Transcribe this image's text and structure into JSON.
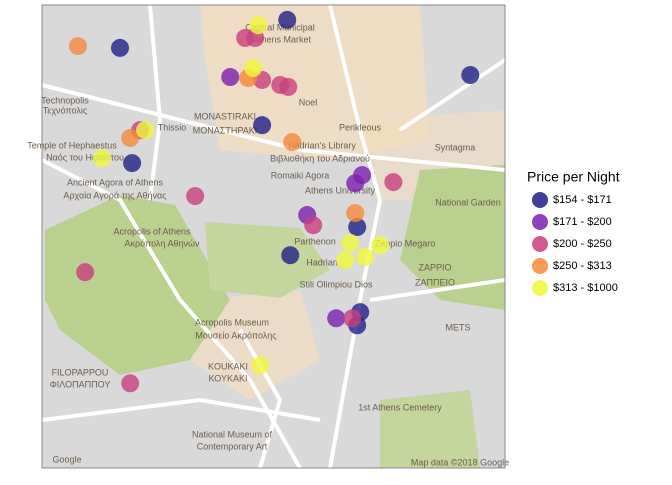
{
  "chart_data": {
    "type": "scatter",
    "legend_title": "Price per Night",
    "xlim": [
      23.714,
      23.74
    ],
    "ylim": [
      37.9635,
      37.984
    ],
    "series": [
      {
        "name": "$154 - $171",
        "color": "#1f1f86",
        "x": [
          23.72777,
          23.71838,
          23.73805,
          23.72636,
          23.71906,
          23.7317,
          23.72794,
          23.7317,
          23.73187
        ],
        "y": [
          37.98334,
          37.9821,
          37.9809,
          37.97868,
          37.977,
          37.97417,
          37.97292,
          37.96982,
          37.9704
        ]
      },
      {
        "name": "$171 - $200",
        "color": "#7a1fae",
        "x": [
          23.72457,
          23.73198,
          23.73159,
          23.72889,
          23.73052
        ],
        "y": [
          37.98081,
          37.97647,
          37.97611,
          37.9747,
          37.97013
        ]
      },
      {
        "name": "$200 - $250",
        "color": "#c93f7e",
        "x": [
          23.72597,
          23.72541,
          23.72636,
          23.72738,
          23.72783,
          23.71951,
          23.7226,
          23.73373,
          23.72923,
          23.71642,
          23.73142,
          23.71895
        ],
        "y": [
          37.98254,
          37.98254,
          37.98068,
          37.98046,
          37.98037,
          37.97846,
          37.97554,
          37.97616,
          37.97425,
          37.97217,
          37.97013,
          37.96725
        ]
      },
      {
        "name": "$250 - $313",
        "color": "#f5883a",
        "x": [
          23.71602,
          23.72558,
          23.71895,
          23.72805,
          23.73159
        ],
        "y": [
          37.98218,
          37.98077,
          37.97811,
          37.97793,
          37.97479
        ]
      },
      {
        "name": "$313 - $1000",
        "color": "#f0f73a",
        "x": [
          23.72614,
          23.72586,
          23.71979,
          23.71737,
          23.73131,
          23.733,
          23.73215,
          23.73103,
          23.72625
        ],
        "y": [
          37.98311,
          37.98121,
          37.97846,
          37.97722,
          37.97346,
          37.97337,
          37.97284,
          37.9727,
          37.96805
        ]
      }
    ]
  },
  "map_labels": [
    "Technopolis",
    "Τεχνόπολις",
    "Thissio",
    "MONASTIRAKI",
    "ΜΟΝΑΣΤΗΡΑΚΙ",
    "Temple of Hephaestus",
    "Ναός του Ηφαίστου",
    "Hadrian's Library",
    "Βιβλιοθήκη του Αδριανού",
    "Ancient Agora of Athens",
    "Αρχαία Αγορά της Αθήνας",
    "Romaiki Agora",
    "Athens University",
    "Acropolis of Athens",
    "Ακρόπολη Αθηνών",
    "Parthenon",
    "Zappio Megaro",
    "Hadrian",
    "Stili Olimpiou Dios",
    "ZAPPIO",
    "ΖΑΠΠΕΙΟ",
    "Acropolis Museum",
    "Μουσείο Ακρόπολης",
    "KOUKAKI",
    "ΚΟΥΚΑΚΙ",
    "FILOPAPPOU",
    "ΦΙΛΟΠΑΠΠΟΥ",
    "National Museum of",
    "Contemporary Art",
    "1st Athens Cemetery",
    "Syntagma",
    "National Garden",
    "METS",
    "Central Municipal",
    "Athens Market",
    "Noel",
    "Perikleous",
    "Google",
    "Map data ©2018 Google"
  ]
}
